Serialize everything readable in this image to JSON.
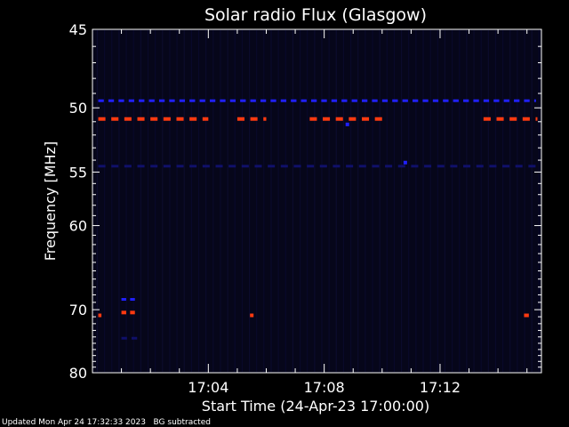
{
  "chart_data": {
    "type": "heatmap",
    "title": "Solar radio Flux (Glasgow)",
    "xlabel": "Start Time (24-Apr-23 17:00:00)",
    "ylabel": "Frequency [MHz]",
    "x_unit": "minutes after 17:00:00",
    "xlim": [
      0,
      15.5
    ],
    "ylim": [
      45,
      80
    ],
    "y_ticks": [
      "45",
      "50",
      "55",
      "60",
      "70",
      "80"
    ],
    "x_ticks": [
      "17:04",
      "17:08",
      "17:12"
    ],
    "background_color": "#06061a",
    "colors": {
      "hot": "#ff3a10",
      "strong": "#ff7a20",
      "mid": "#2020ff",
      "faint": "#10106a"
    },
    "emission_bands": [
      {
        "freq_mhz": 49.5,
        "level": "mid",
        "x_start": 0.2,
        "x_end": 15.3,
        "dash_min": 0.35
      },
      {
        "freq_mhz": 50.8,
        "level": "hot",
        "x_start": 0.2,
        "x_end": 4.0,
        "dash_min": 0.45
      },
      {
        "freq_mhz": 50.8,
        "level": "hot",
        "x_start": 5.0,
        "x_end": 6.0,
        "dash_min": 0.45
      },
      {
        "freq_mhz": 50.8,
        "level": "hot",
        "x_start": 7.5,
        "x_end": 10.0,
        "dash_min": 0.45
      },
      {
        "freq_mhz": 50.8,
        "level": "hot",
        "x_start": 13.5,
        "x_end": 15.3,
        "dash_min": 0.45
      },
      {
        "freq_mhz": 54.5,
        "level": "faint",
        "x_start": 0.2,
        "x_end": 15.3,
        "dash_min": 0.45
      },
      {
        "freq_mhz": 68.6,
        "level": "mid",
        "x_start": 1.0,
        "x_end": 1.6,
        "dash_min": 0.3
      },
      {
        "freq_mhz": 70.4,
        "level": "hot",
        "x_start": 1.0,
        "x_end": 1.6,
        "dash_min": 0.3
      },
      {
        "freq_mhz": 70.8,
        "level": "hot",
        "x_start": 0.2,
        "x_end": 0.4,
        "dash_min": 0.2
      },
      {
        "freq_mhz": 70.8,
        "level": "hot",
        "x_start": 14.9,
        "x_end": 15.2,
        "dash_min": 0.3
      },
      {
        "freq_mhz": 74.2,
        "level": "faint",
        "x_start": 1.0,
        "x_end": 1.7,
        "dash_min": 0.35
      }
    ],
    "spots": [
      {
        "time_min": 8.8,
        "freq_mhz": 51.2,
        "level": "mid"
      },
      {
        "time_min": 10.8,
        "freq_mhz": 54.2,
        "level": "mid"
      },
      {
        "time_min": 5.5,
        "freq_mhz": 70.8,
        "level": "hot"
      }
    ]
  },
  "footer": {
    "updated": "Updated Mon Apr 24 17:32:33 2023",
    "note": "BG subtracted"
  }
}
